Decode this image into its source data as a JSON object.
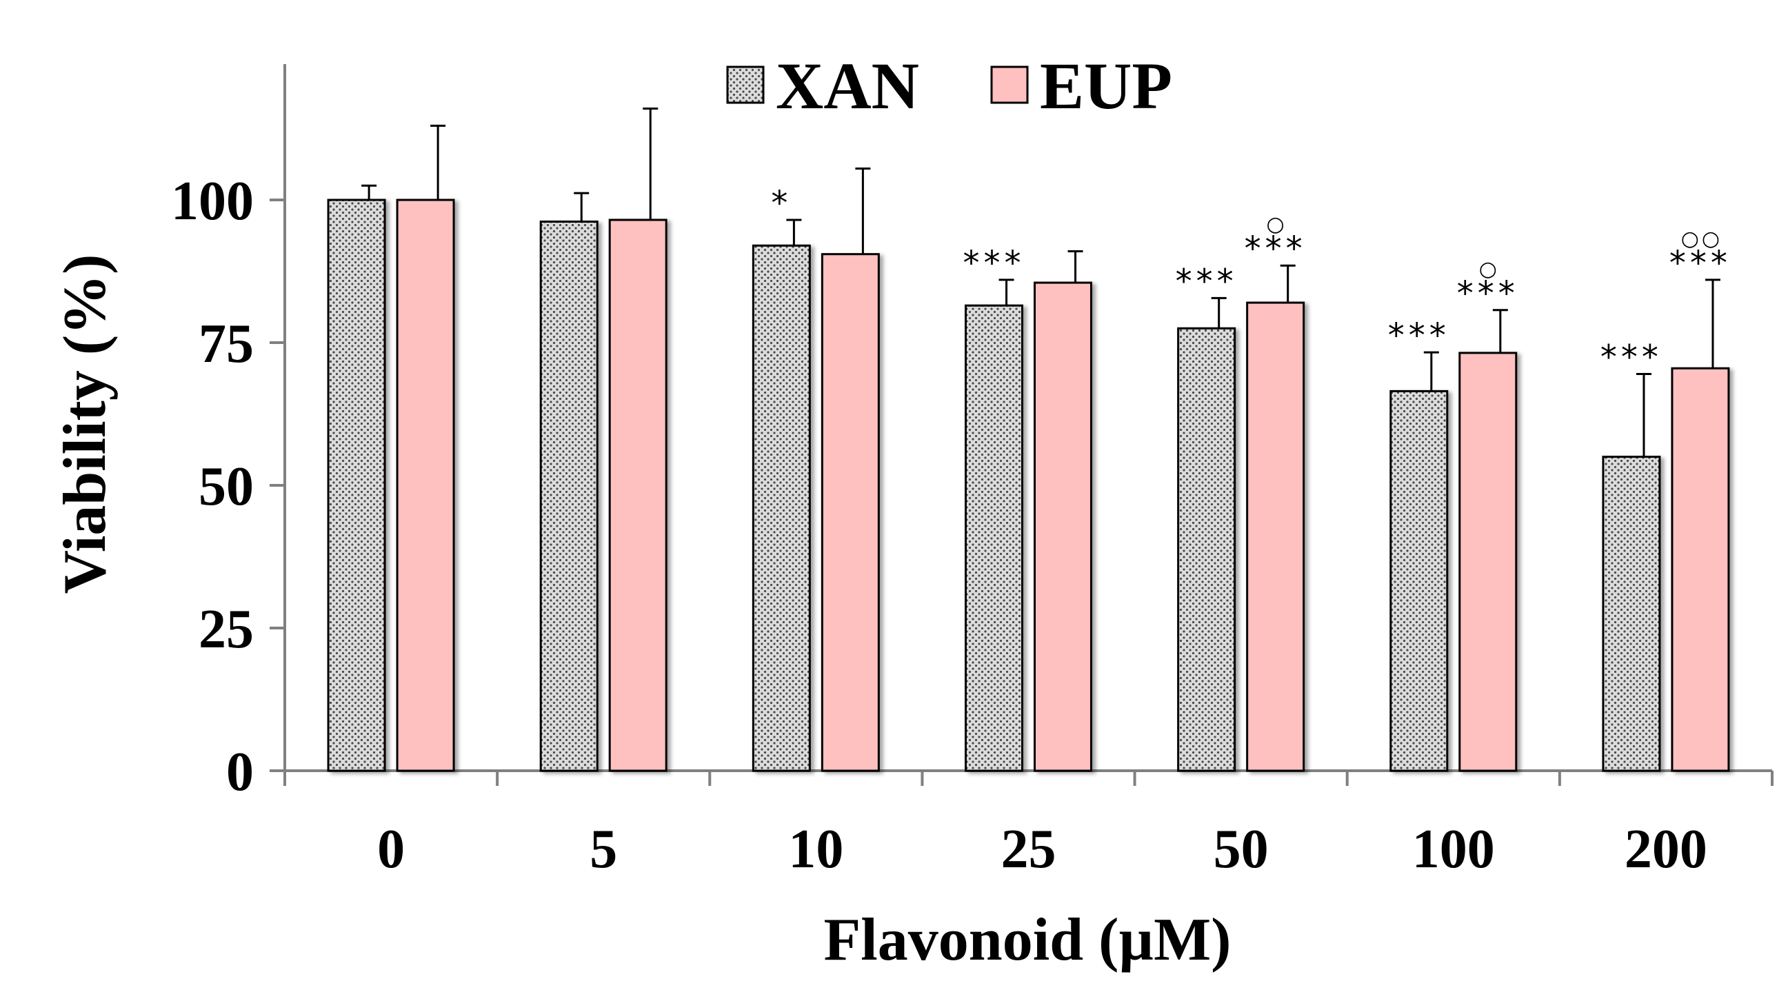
{
  "chart_data": {
    "type": "bar",
    "title": "",
    "xlabel": "Flavonoid (µM)",
    "ylabel": "Viability (%)",
    "categories": [
      "0",
      "5",
      "10",
      "25",
      "50",
      "100",
      "200"
    ],
    "ylim": [
      0,
      125
    ],
    "yticks": [
      "0",
      "25",
      "50",
      "75",
      "100"
    ],
    "legend_position": "top-center",
    "colors": {
      "XAN_fill": "#d9d9d9",
      "XAN_dots": "#555555",
      "EUP_fill": "#ffc0c0",
      "edge": "#000000"
    },
    "series": [
      {
        "name": "XAN",
        "values": [
          100,
          96.2,
          92,
          81.5,
          77.5,
          66.5,
          55
        ],
        "errors": [
          2.5,
          5,
          4.5,
          4.5,
          5.3,
          6.8,
          14.5
        ],
        "significance": [
          "",
          "",
          "*",
          "***",
          "***",
          "***",
          "***"
        ],
        "circles": [
          "",
          "",
          "",
          "",
          "",
          "",
          ""
        ]
      },
      {
        "name": "EUP",
        "values": [
          100,
          96.5,
          90.5,
          85.5,
          82,
          73.2,
          70.5
        ],
        "errors": [
          13,
          19.5,
          15,
          5.5,
          6.5,
          7.5,
          15.5
        ],
        "significance": [
          "",
          "",
          "",
          "",
          "***",
          "***",
          "***"
        ],
        "circles": [
          "",
          "",
          "",
          "",
          "○",
          "○",
          "○○"
        ]
      }
    ]
  }
}
